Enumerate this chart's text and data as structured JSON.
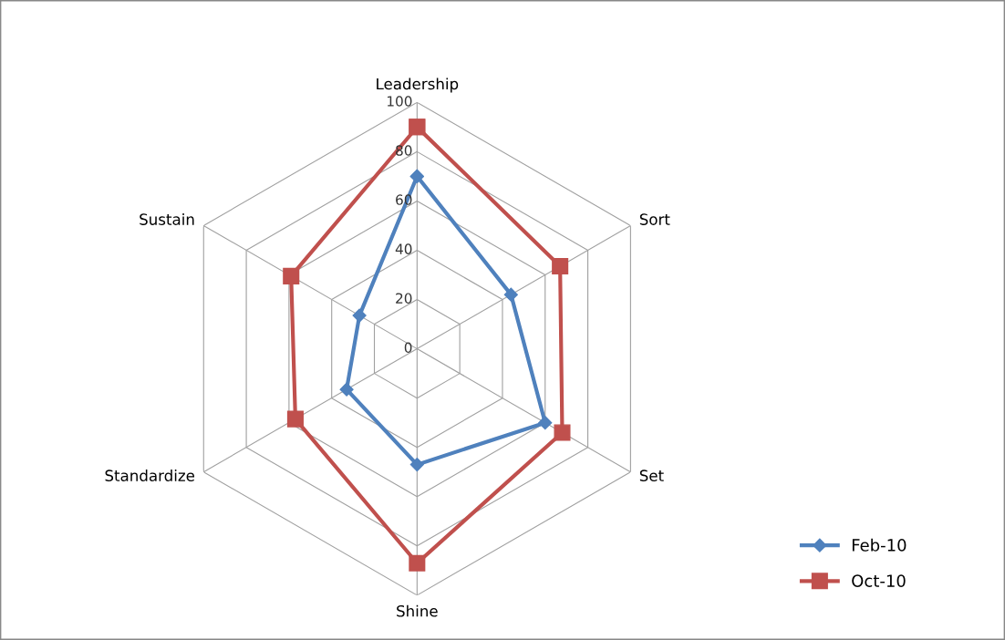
{
  "chart_data": {
    "type": "radar",
    "categories": [
      "Leadership",
      "Sort",
      "Set",
      "Shine",
      "Standardize",
      "Sustain"
    ],
    "series": [
      {
        "name": "Feb-10",
        "color": "#4f81bd",
        "marker": "diamond",
        "values": [
          70,
          44,
          60,
          47,
          33,
          27
        ]
      },
      {
        "name": "Oct-10",
        "color": "#c0504d",
        "marker": "square",
        "values": [
          90,
          67,
          68,
          87,
          57,
          59
        ]
      }
    ],
    "ylim": [
      0,
      100
    ],
    "yticks": [
      0,
      20,
      40,
      60,
      80,
      100
    ],
    "grid": true,
    "legend": "bottom right",
    "line_style": "solid"
  }
}
